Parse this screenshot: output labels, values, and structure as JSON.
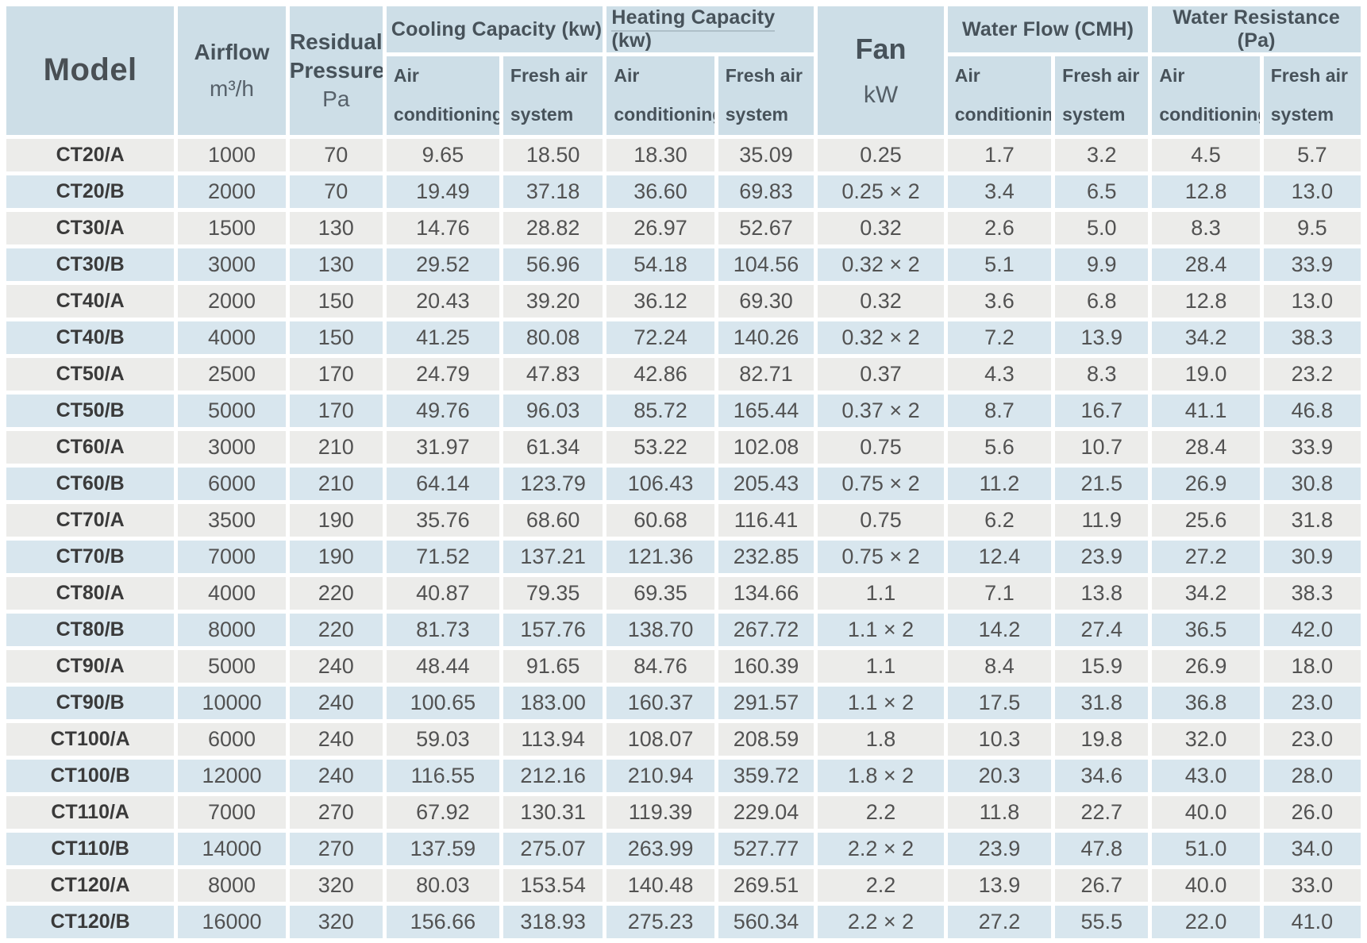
{
  "colors": {
    "header_bg": "#cddee7",
    "row_gray": "#ececea",
    "row_blue": "#d8e6ee",
    "text_dark": "#3a3a3a",
    "text_data": "#525252"
  },
  "table": {
    "header": {
      "model": "Model",
      "airflow_line1": "Airflow",
      "airflow_line2": "m³/h",
      "residual_line1": "Residual",
      "residual_line2": "Pressure",
      "residual_line3": "Pa",
      "cooling_group": "Cooling Capacity (kw)",
      "heating_group": "Heating Capacity (kw)",
      "fan_line1": "Fan",
      "fan_line2": "kW",
      "water_flow_group": "Water Flow (CMH)",
      "water_resistance_group": "Water Resistance (Pa)",
      "sub_air_conditioning": "Air conditioning",
      "sub_fresh_air_system": "Fresh air system"
    },
    "rows": [
      [
        "CT20/A",
        "1000",
        "70",
        "9.65",
        "18.50",
        "18.30",
        "35.09",
        "0.25",
        "1.7",
        "3.2",
        "4.5",
        "5.7"
      ],
      [
        "CT20/B",
        "2000",
        "70",
        "19.49",
        "37.18",
        "36.60",
        "69.83",
        "0.25 × 2",
        "3.4",
        "6.5",
        "12.8",
        "13.0"
      ],
      [
        "CT30/A",
        "1500",
        "130",
        "14.76",
        "28.82",
        "26.97",
        "52.67",
        "0.32",
        "2.6",
        "5.0",
        "8.3",
        "9.5"
      ],
      [
        "CT30/B",
        "3000",
        "130",
        "29.52",
        "56.96",
        "54.18",
        "104.56",
        "0.32 × 2",
        "5.1",
        "9.9",
        "28.4",
        "33.9"
      ],
      [
        "CT40/A",
        "2000",
        "150",
        "20.43",
        "39.20",
        "36.12",
        "69.30",
        "0.32",
        "3.6",
        "6.8",
        "12.8",
        "13.0"
      ],
      [
        "CT40/B",
        "4000",
        "150",
        "41.25",
        "80.08",
        "72.24",
        "140.26",
        "0.32 × 2",
        "7.2",
        "13.9",
        "34.2",
        "38.3"
      ],
      [
        "CT50/A",
        "2500",
        "170",
        "24.79",
        "47.83",
        "42.86",
        "82.71",
        "0.37",
        "4.3",
        "8.3",
        "19.0",
        "23.2"
      ],
      [
        "CT50/B",
        "5000",
        "170",
        "49.76",
        "96.03",
        "85.72",
        "165.44",
        "0.37 × 2",
        "8.7",
        "16.7",
        "41.1",
        "46.8"
      ],
      [
        "CT60/A",
        "3000",
        "210",
        "31.97",
        "61.34",
        "53.22",
        "102.08",
        "0.75",
        "5.6",
        "10.7",
        "28.4",
        "33.9"
      ],
      [
        "CT60/B",
        "6000",
        "210",
        "64.14",
        "123.79",
        "106.43",
        "205.43",
        "0.75 × 2",
        "11.2",
        "21.5",
        "26.9",
        "30.8"
      ],
      [
        "CT70/A",
        "3500",
        "190",
        "35.76",
        "68.60",
        "60.68",
        "116.41",
        "0.75",
        "6.2",
        "11.9",
        "25.6",
        "31.8"
      ],
      [
        "CT70/B",
        "7000",
        "190",
        "71.52",
        "137.21",
        "121.36",
        "232.85",
        "0.75 × 2",
        "12.4",
        "23.9",
        "27.2",
        "30.9"
      ],
      [
        "CT80/A",
        "4000",
        "220",
        "40.87",
        "79.35",
        "69.35",
        "134.66",
        "1.1",
        "7.1",
        "13.8",
        "34.2",
        "38.3"
      ],
      [
        "CT80/B",
        "8000",
        "220",
        "81.73",
        "157.76",
        "138.70",
        "267.72",
        "1.1 × 2",
        "14.2",
        "27.4",
        "36.5",
        "42.0"
      ],
      [
        "CT90/A",
        "5000",
        "240",
        "48.44",
        "91.65",
        "84.76",
        "160.39",
        "1.1",
        "8.4",
        "15.9",
        "26.9",
        "18.0"
      ],
      [
        "CT90/B",
        "10000",
        "240",
        "100.65",
        "183.00",
        "160.37",
        "291.57",
        "1.1 × 2",
        "17.5",
        "31.8",
        "36.8",
        "23.0"
      ],
      [
        "CT100/A",
        "6000",
        "240",
        "59.03",
        "113.94",
        "108.07",
        "208.59",
        "1.8",
        "10.3",
        "19.8",
        "32.0",
        "23.0"
      ],
      [
        "CT100/B",
        "12000",
        "240",
        "116.55",
        "212.16",
        "210.94",
        "359.72",
        "1.8 × 2",
        "20.3",
        "34.6",
        "43.0",
        "28.0"
      ],
      [
        "CT110/A",
        "7000",
        "270",
        "67.92",
        "130.31",
        "119.39",
        "229.04",
        "2.2",
        "11.8",
        "22.7",
        "40.0",
        "26.0"
      ],
      [
        "CT110/B",
        "14000",
        "270",
        "137.59",
        "275.07",
        "263.99",
        "527.77",
        "2.2 × 2",
        "23.9",
        "47.8",
        "51.0",
        "34.0"
      ],
      [
        "CT120/A",
        "8000",
        "320",
        "80.03",
        "153.54",
        "140.48",
        "269.51",
        "2.2",
        "13.9",
        "26.7",
        "40.0",
        "33.0"
      ],
      [
        "CT120/B",
        "16000",
        "320",
        "156.66",
        "318.93",
        "275.23",
        "560.34",
        "2.2 × 2",
        "27.2",
        "55.5",
        "22.0",
        "41.0"
      ]
    ]
  }
}
